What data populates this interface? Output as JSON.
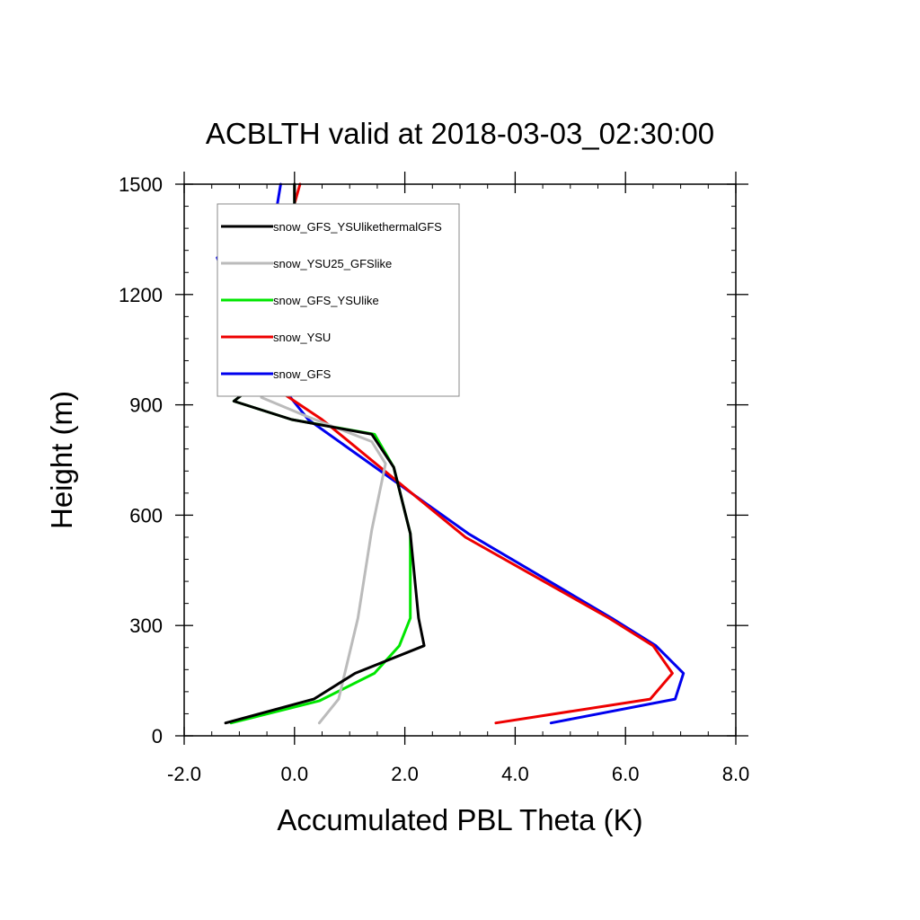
{
  "chart_data": {
    "type": "line",
    "title": "ACBLTH valid at 2018-03-03_02:30:00",
    "xlabel": "Accumulated PBL Theta (K)",
    "ylabel": "Height (m)",
    "xlim": [
      -2.0,
      8.0
    ],
    "ylim": [
      0,
      1500
    ],
    "xticks": [
      -2.0,
      0.0,
      2.0,
      4.0,
      6.0,
      8.0
    ],
    "xtick_labels": [
      "-2.0",
      "0.0",
      "2.0",
      "4.0",
      "6.0",
      "8.0"
    ],
    "yticks": [
      0,
      300,
      600,
      900,
      1200,
      1500
    ],
    "ytick_labels": [
      "0",
      "300",
      "600",
      "900",
      "1200",
      "1500"
    ],
    "x_minor_step": 0.5,
    "y_minor_step": 60,
    "grid": false,
    "legend_position": "top-left",
    "series": [
      {
        "name": "snow_GFS_YSUlikethermalGFS",
        "color": "#000000",
        "points": [
          [
            -1.25,
            35
          ],
          [
            0.35,
            100
          ],
          [
            1.1,
            170
          ],
          [
            2.35,
            245
          ],
          [
            2.25,
            320
          ],
          [
            2.1,
            550
          ],
          [
            1.8,
            730
          ],
          [
            1.4,
            820
          ],
          [
            -0.05,
            860
          ],
          [
            -1.1,
            910
          ],
          [
            -0.5,
            980
          ],
          [
            -0.1,
            1010
          ],
          [
            0.0,
            1110
          ],
          [
            0.0,
            1200
          ],
          [
            0.0,
            1500
          ]
        ]
      },
      {
        "name": "snow_YSU25_GFSlike",
        "color": "#bbbbbb",
        "points": [
          [
            0.45,
            35
          ],
          [
            0.8,
            100
          ],
          [
            1.15,
            320
          ],
          [
            1.4,
            560
          ],
          [
            1.65,
            740
          ],
          [
            1.4,
            800
          ],
          [
            0.2,
            870
          ],
          [
            -0.6,
            920
          ],
          [
            -0.5,
            975
          ],
          [
            -0.1,
            1010
          ],
          [
            0.0,
            1100
          ],
          [
            0.0,
            1500
          ]
        ]
      },
      {
        "name": "snow_GFS_YSUlike",
        "color": "#00e600",
        "points": [
          [
            -1.15,
            35
          ],
          [
            0.45,
            95
          ],
          [
            1.45,
            170
          ],
          [
            1.9,
            245
          ],
          [
            2.1,
            320
          ],
          [
            2.1,
            550
          ],
          [
            1.8,
            730
          ],
          [
            1.45,
            820
          ],
          [
            -0.05,
            860
          ],
          [
            -1.1,
            910
          ],
          [
            -0.5,
            980
          ],
          [
            -0.1,
            1010
          ],
          [
            0.0,
            1110
          ],
          [
            0.0,
            1500
          ]
        ]
      },
      {
        "name": "snow_YSU",
        "color": "#ee0000",
        "points": [
          [
            3.65,
            35
          ],
          [
            6.45,
            100
          ],
          [
            6.85,
            170
          ],
          [
            6.5,
            245
          ],
          [
            5.7,
            320
          ],
          [
            3.1,
            540
          ],
          [
            0.5,
            860
          ],
          [
            -0.2,
            930
          ],
          [
            -0.65,
            990
          ],
          [
            -0.6,
            1190
          ],
          [
            -0.35,
            1260
          ],
          [
            0.1,
            1500
          ]
        ]
      },
      {
        "name": "snow_GFS",
        "color": "#0000ee",
        "points": [
          [
            4.65,
            35
          ],
          [
            6.9,
            100
          ],
          [
            7.05,
            170
          ],
          [
            6.55,
            245
          ],
          [
            5.75,
            320
          ],
          [
            3.15,
            550
          ],
          [
            0.25,
            860
          ],
          [
            -0.55,
            1010
          ],
          [
            -1.15,
            1200
          ],
          [
            -1.4,
            1300
          ],
          [
            -0.35,
            1410
          ],
          [
            -0.25,
            1500
          ]
        ]
      }
    ]
  }
}
